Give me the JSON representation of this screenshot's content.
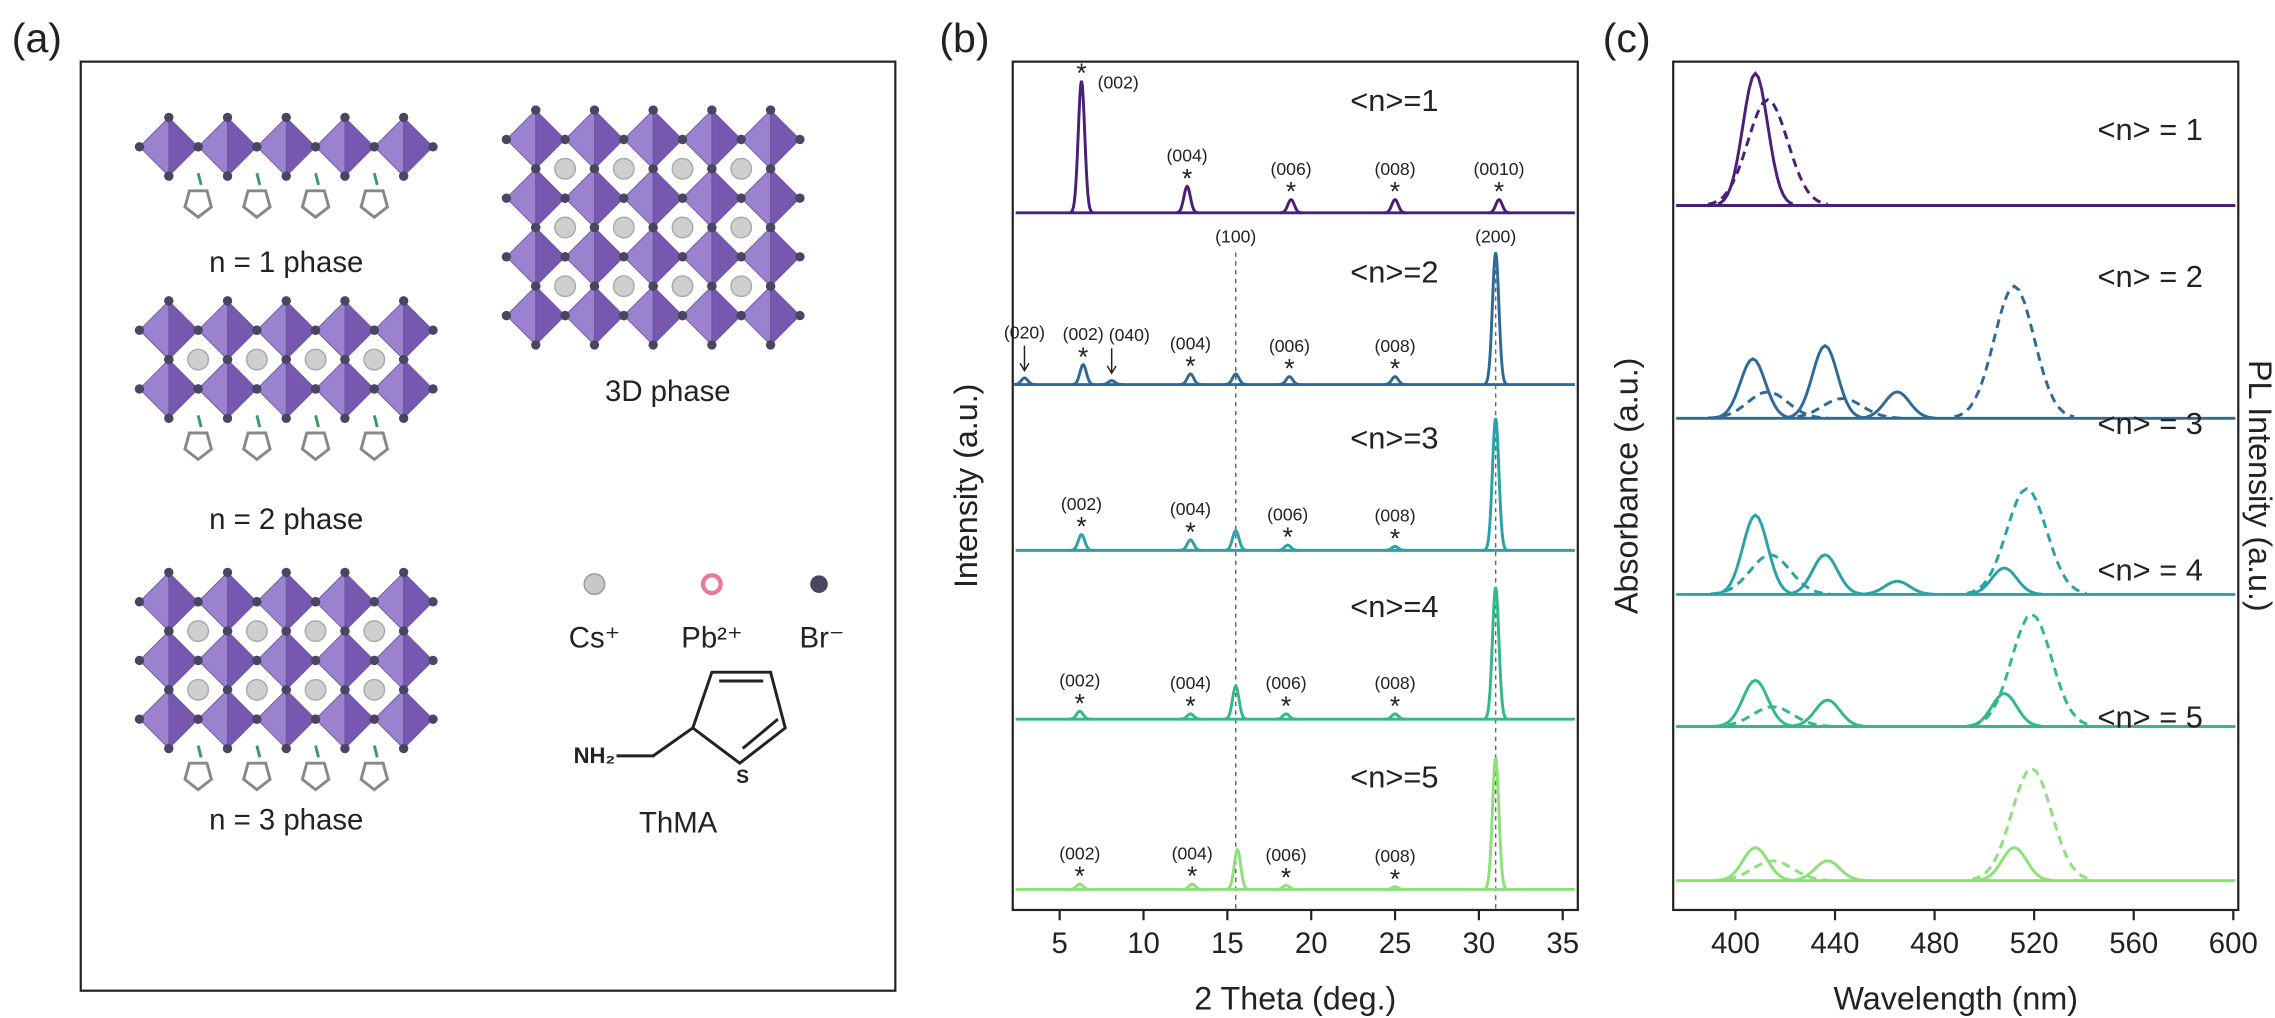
{
  "panel_labels": [
    "(a)",
    "(b)",
    "(c)"
  ],
  "diagram": {
    "phase_labels": [
      "n = 1 phase",
      "n = 2 phase",
      "n = 3 phase",
      "3D phase"
    ],
    "legend": [
      "Cs⁺",
      "Pb²⁺",
      "Br⁻"
    ],
    "molecule": {
      "amine": "NH₂",
      "sulfur": "S",
      "name": "ThMA"
    }
  },
  "chart_data": [
    {
      "type": "stacked-peaks",
      "xlabel": "2 Theta (deg.)",
      "ylabel": "Intensity (a.u.)",
      "xlim": [
        2.2,
        35.9
      ],
      "xticks": [
        5,
        10,
        15,
        20,
        25,
        30,
        35
      ],
      "peak_marker": "*",
      "reference_lines": [
        {
          "x": 15.5,
          "label": "(100)"
        },
        {
          "x": 31.0,
          "label": "(200)"
        }
      ],
      "series": [
        {
          "name": "<n>=1",
          "color": "#4b1e78",
          "peaks": [
            {
              "x": 6.3,
              "height": 1.0,
              "label": "(002)"
            },
            {
              "x": 12.6,
              "height": 0.2,
              "label": "(004)"
            },
            {
              "x": 18.8,
              "height": 0.1,
              "label": "(006)"
            },
            {
              "x": 25.0,
              "height": 0.1,
              "label": "(008)"
            },
            {
              "x": 31.2,
              "height": 0.1,
              "label": "(0010)"
            }
          ]
        },
        {
          "name": "<n>=2",
          "color": "#2e6a94",
          "peaks": [
            {
              "x": 2.9,
              "height": 0.05,
              "label": "(020)",
              "marker_style": "arrow"
            },
            {
              "x": 6.4,
              "height": 0.15,
              "label": "(002)"
            },
            {
              "x": 8.1,
              "height": 0.03,
              "label": "(040)",
              "marker_style": "arrow"
            },
            {
              "x": 12.8,
              "height": 0.08,
              "label": "(004)"
            },
            {
              "x": 15.5,
              "height": 0.08
            },
            {
              "x": 18.7,
              "height": 0.06,
              "label": "(006)"
            },
            {
              "x": 25.0,
              "height": 0.06,
              "label": "(008)"
            },
            {
              "x": 31.0,
              "height": 1.0
            }
          ]
        },
        {
          "name": "<n>=3",
          "color": "#2aa3a6",
          "peaks": [
            {
              "x": 6.3,
              "height": 0.12,
              "label": "(002)"
            },
            {
              "x": 12.8,
              "height": 0.08,
              "label": "(004)"
            },
            {
              "x": 15.5,
              "height": 0.15
            },
            {
              "x": 18.6,
              "height": 0.04,
              "label": "(006)"
            },
            {
              "x": 25.0,
              "height": 0.03,
              "label": "(008)"
            },
            {
              "x": 31.0,
              "height": 1.0
            }
          ]
        },
        {
          "name": "<n>=4",
          "color": "#33b88a",
          "peaks": [
            {
              "x": 6.2,
              "height": 0.06,
              "label": "(002)"
            },
            {
              "x": 12.8,
              "height": 0.04,
              "label": "(004)"
            },
            {
              "x": 15.5,
              "height": 0.25
            },
            {
              "x": 18.5,
              "height": 0.04,
              "label": "(006)"
            },
            {
              "x": 25.0,
              "height": 0.04,
              "label": "(008)"
            },
            {
              "x": 31.0,
              "height": 1.0
            }
          ]
        },
        {
          "name": "<n>=5",
          "color": "#8ee07a",
          "peaks": [
            {
              "x": 6.2,
              "height": 0.04,
              "label": "(002)"
            },
            {
              "x": 12.9,
              "height": 0.04,
              "label": "(004)"
            },
            {
              "x": 15.6,
              "height": 0.3
            },
            {
              "x": 18.5,
              "height": 0.03,
              "label": "(006)"
            },
            {
              "x": 25.0,
              "height": 0.02,
              "label": "(008)"
            },
            {
              "x": 31.0,
              "height": 1.0
            }
          ]
        }
      ]
    },
    {
      "type": "stacked-spectra",
      "xlabel": "Wavelength (nm)",
      "ylabel": "Absorbance (a.u.)",
      "y2label": "PL Intensity (a.u.)",
      "xlim": [
        375,
        602
      ],
      "xticks": [
        400,
        440,
        480,
        520,
        560,
        600
      ],
      "series": [
        {
          "name": "<n> = 1",
          "color": "#4b1e78",
          "absorption": [
            {
              "x": 408,
              "height": 1.0
            }
          ],
          "pl": [
            {
              "x": 413,
              "height": 0.8
            }
          ]
        },
        {
          "name": "<n> = 2",
          "color": "#2e6a94",
          "absorption": [
            {
              "x": 407,
              "height": 0.45
            },
            {
              "x": 436,
              "height": 0.55
            },
            {
              "x": 465,
              "height": 0.2
            }
          ],
          "pl": [
            {
              "x": 413,
              "height": 0.2
            },
            {
              "x": 443,
              "height": 0.15
            },
            {
              "x": 512,
              "height": 1.0
            }
          ]
        },
        {
          "name": "<n> = 3",
          "color": "#2aa3a6",
          "absorption": [
            {
              "x": 408,
              "height": 0.6
            },
            {
              "x": 436,
              "height": 0.3
            },
            {
              "x": 465,
              "height": 0.1
            },
            {
              "x": 508,
              "height": 0.2
            }
          ],
          "pl": [
            {
              "x": 414,
              "height": 0.3
            },
            {
              "x": 517,
              "height": 0.8
            }
          ]
        },
        {
          "name": "<n> = 4",
          "color": "#33b88a",
          "absorption": [
            {
              "x": 408,
              "height": 0.35
            },
            {
              "x": 437,
              "height": 0.2
            },
            {
              "x": 508,
              "height": 0.25
            }
          ],
          "pl": [
            {
              "x": 415,
              "height": 0.15
            },
            {
              "x": 519,
              "height": 0.85
            }
          ]
        },
        {
          "name": "<n> = 5",
          "color": "#8ee07a",
          "absorption": [
            {
              "x": 408,
              "height": 0.25
            },
            {
              "x": 437,
              "height": 0.15
            },
            {
              "x": 512,
              "height": 0.25
            }
          ],
          "pl": [
            {
              "x": 415,
              "height": 0.15
            },
            {
              "x": 519,
              "height": 0.85
            }
          ]
        }
      ]
    }
  ]
}
